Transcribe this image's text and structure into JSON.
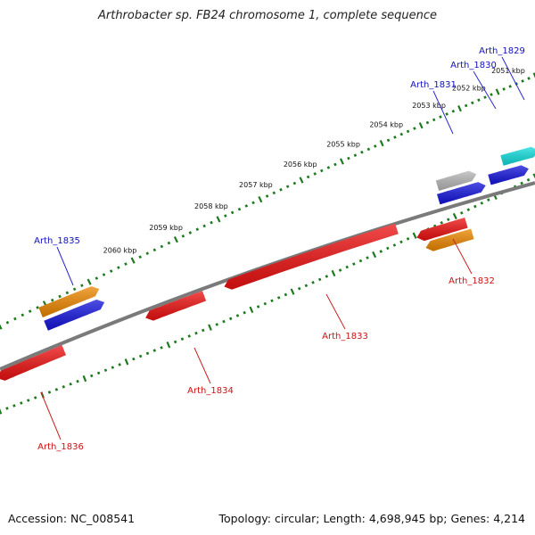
{
  "title": "Arthrobacter sp. FB24 chromosome 1, complete sequence",
  "footer": {
    "accession_label": "Accession:",
    "accession_value": "NC_008541",
    "topology_label": "Topology:",
    "topology_value": "circular;",
    "length_label": "Length:",
    "length_value": "4,698,945 bp;",
    "genes_label": "Genes:",
    "genes_value": "4,214"
  },
  "colors": {
    "background": "#ffffff",
    "backbone": "#7a7a7a",
    "tick": "#1e7a1e",
    "label_blue": "#1010c0",
    "label_red": "#cc1111",
    "leader_blue": "#2a2ad0",
    "leader_red": "#cc2222",
    "cds_red": "#ee1111",
    "cds_blue": "#1515dd",
    "cds_orange": "#ee8800",
    "cds_cyan": "#11dddd",
    "cds_grey": "#b8b8b8"
  },
  "scale": {
    "ticks": [
      "2051 kbp",
      "2052 kbp",
      "2053 kbp",
      "2054 kbp",
      "2055 kbp",
      "2056 kbp",
      "2057 kbp",
      "2058 kbp",
      "2059 kbp",
      "2060 kbp"
    ]
  },
  "features": [
    {
      "label": "Arth_1829",
      "strand": "upper",
      "color_key": "cds_cyan",
      "label_color": "label_blue"
    },
    {
      "label": "Arth_1830",
      "strand": "upper",
      "color_key": "cds_blue",
      "label_color": "label_blue"
    },
    {
      "label": "Arth_1831",
      "strand": "upper",
      "color_key": "cds_grey",
      "label_color": "label_blue"
    },
    {
      "label": "Arth_1832",
      "strand": "lower",
      "color_key": "cds_red",
      "label_color": "label_red"
    },
    {
      "label": "Arth_1833",
      "strand": "lower",
      "color_key": "cds_red",
      "label_color": "label_red"
    },
    {
      "label": "Arth_1834",
      "strand": "lower",
      "color_key": "cds_red",
      "label_color": "label_red"
    },
    {
      "label": "Arth_1835",
      "strand": "upper",
      "color_key": "cds_blue",
      "label_color": "label_blue"
    },
    {
      "label": "Arth_1836",
      "strand": "lower",
      "color_key": "cds_red",
      "label_color": "label_red"
    }
  ]
}
